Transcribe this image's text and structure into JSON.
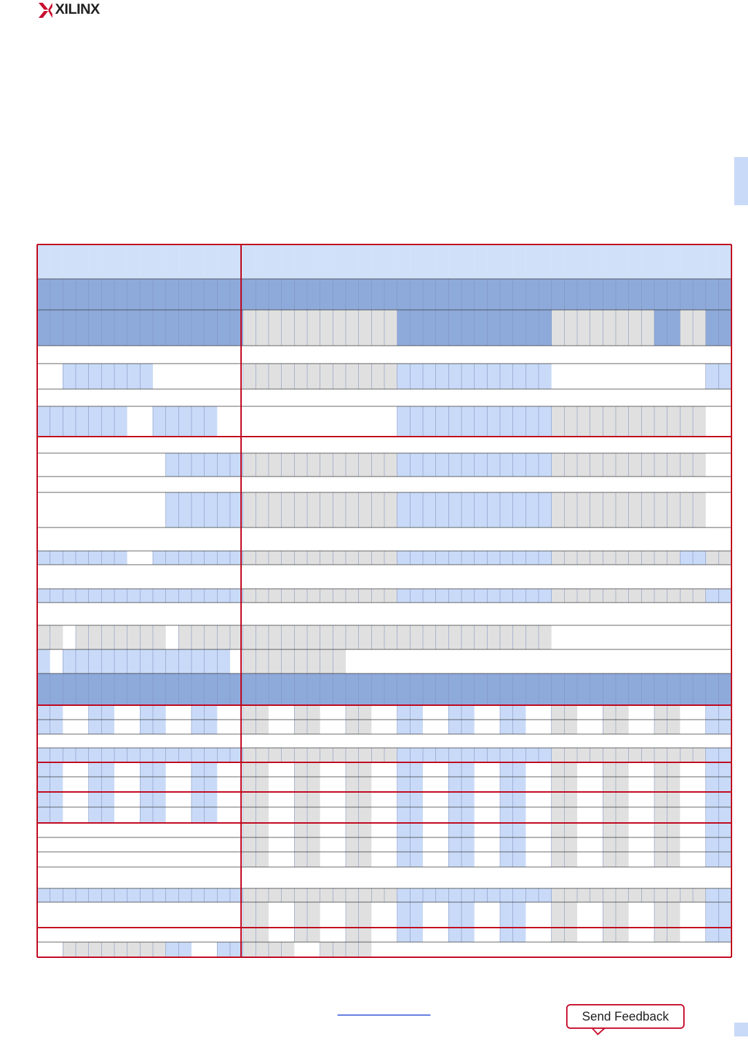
{
  "header": {
    "logo": "XILINX"
  },
  "footer": {
    "feedback": "Send Feedback"
  }
}
